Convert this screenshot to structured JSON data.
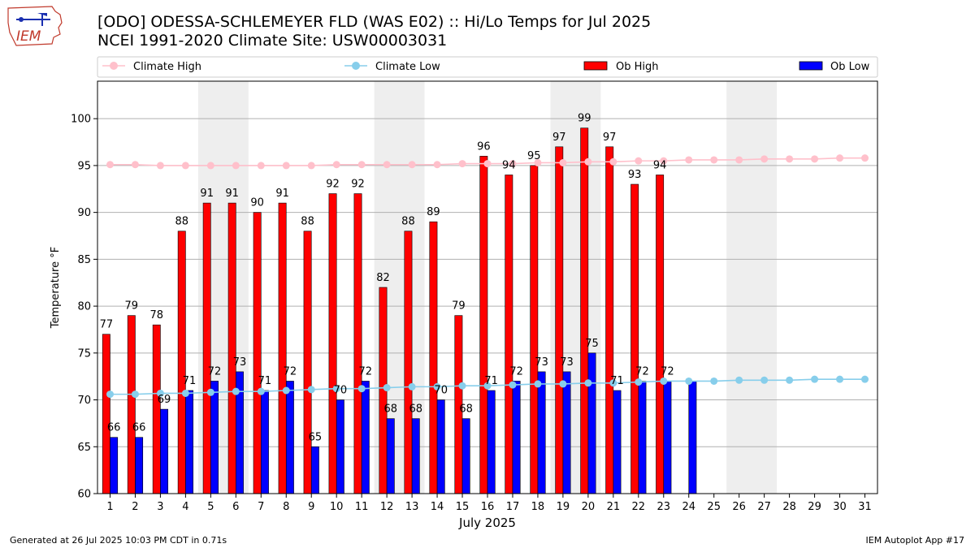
{
  "header": {
    "title": "[ODO] ODESSA-SCHLEMEYER FLD (WAS E02) :: Hi/Lo Temps for Jul 2025",
    "subtitle": "NCEI 1991-2020 Climate Site: USW00003031"
  },
  "logo": {
    "text": "IEM",
    "icon": "iem-iowa-logo-icon"
  },
  "footer": {
    "left": "Generated at 26 Jul 2025 10:03 PM CDT in 0.71s",
    "right": "IEM Autoplot App #17"
  },
  "colors": {
    "ob_high": "#ff0000",
    "ob_low": "#0000ff",
    "climate_high": "#ffc0cb",
    "climate_low": "#87ceeb",
    "weekend_shade": "#eeeeee",
    "grid": "#b0b0b0"
  },
  "chart_data": {
    "type": "bar",
    "xlabel": "July 2025",
    "ylabel": "Temperature °F",
    "xlim": [
      0.5,
      31.5
    ],
    "ylim": [
      60,
      104
    ],
    "yticks": [
      60,
      65,
      70,
      75,
      80,
      85,
      90,
      95,
      100
    ],
    "grid": "horizontal",
    "legend_placement": "top, above plot",
    "categories": [
      "1",
      "2",
      "3",
      "4",
      "5",
      "6",
      "7",
      "8",
      "9",
      "10",
      "11",
      "12",
      "13",
      "14",
      "15",
      "16",
      "17",
      "18",
      "19",
      "20",
      "21",
      "22",
      "23",
      "24",
      "25",
      "26",
      "27",
      "28",
      "29",
      "30",
      "31"
    ],
    "shaded_days": [
      5,
      6,
      12,
      13,
      19,
      20,
      26,
      27
    ],
    "series": [
      {
        "name": "Climate High",
        "kind": "line",
        "values": [
          95.1,
          95.1,
          95.0,
          95.0,
          95.0,
          95.0,
          95.0,
          95.0,
          95.0,
          95.1,
          95.1,
          95.1,
          95.1,
          95.1,
          95.2,
          95.2,
          95.2,
          95.3,
          95.3,
          95.4,
          95.4,
          95.5,
          95.5,
          95.6,
          95.6,
          95.6,
          95.7,
          95.7,
          95.7,
          95.8,
          95.8
        ]
      },
      {
        "name": "Climate Low",
        "kind": "line",
        "values": [
          70.6,
          70.6,
          70.7,
          70.7,
          70.8,
          70.9,
          70.9,
          71.0,
          71.1,
          71.2,
          71.2,
          71.3,
          71.4,
          71.4,
          71.5,
          71.5,
          71.6,
          71.7,
          71.7,
          71.8,
          71.8,
          71.9,
          72.0,
          72.0,
          72.0,
          72.1,
          72.1,
          72.1,
          72.2,
          72.2,
          72.2
        ]
      },
      {
        "name": "Ob High",
        "kind": "bar",
        "values": [
          77,
          79,
          78,
          88,
          91,
          91,
          90,
          91,
          88,
          92,
          92,
          82,
          88,
          89,
          79,
          96,
          94,
          95,
          97,
          99,
          97,
          93,
          94,
          null,
          null,
          null,
          null,
          null,
          null,
          null,
          null
        ],
        "labels": [
          "77",
          "79",
          "78",
          "88",
          "91",
          "91",
          "90",
          "91",
          "88",
          "92",
          "92",
          "82",
          "88",
          "89",
          "79",
          "96",
          "94",
          "95",
          "97",
          "99",
          "97",
          "93",
          "94",
          "",
          "",
          "",
          "",
          "",
          "",
          "",
          ""
        ]
      },
      {
        "name": "Ob Low",
        "kind": "bar",
        "values": [
          66,
          66,
          69,
          71,
          72,
          73,
          71,
          72,
          65,
          70,
          72,
          68,
          68,
          70,
          68,
          71,
          72,
          73,
          73,
          75,
          71,
          72,
          72,
          72,
          null,
          null,
          null,
          null,
          null,
          null,
          null
        ],
        "labels": [
          "66",
          "66",
          "69",
          "71",
          "72",
          "73",
          "71",
          "72",
          "65",
          "70",
          "72",
          "68",
          "68",
          "70",
          "68",
          "71",
          "72",
          "73",
          "73",
          "75",
          "71",
          "72",
          "72",
          "",
          "",
          "",
          "",
          "",
          "",
          "",
          ""
        ]
      }
    ]
  }
}
